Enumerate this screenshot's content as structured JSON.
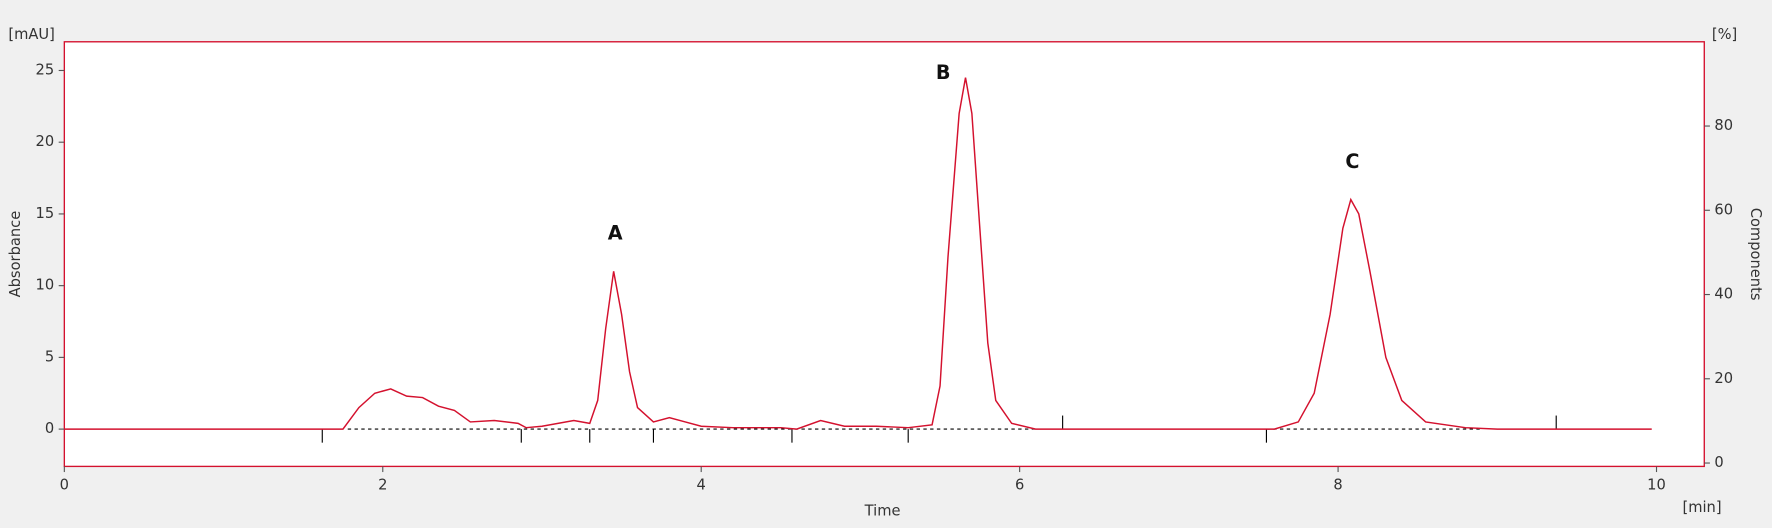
{
  "chart_data": {
    "type": "line",
    "x_label": "Time",
    "x_unit": "[min]",
    "y_label": "Absorbance",
    "y_unit": "[mAU]",
    "y2_label": "Components",
    "y2_unit": "[%]",
    "x": [
      0,
      1.75,
      1.85,
      1.95,
      2.05,
      2.15,
      2.25,
      2.35,
      2.45,
      2.55,
      2.7,
      2.85,
      2.9,
      3.0,
      3.2,
      3.3,
      3.35,
      3.4,
      3.45,
      3.5,
      3.55,
      3.6,
      3.7,
      3.8,
      3.9,
      4.0,
      4.2,
      4.5,
      4.6,
      4.75,
      4.9,
      5.1,
      5.3,
      5.45,
      5.5,
      5.55,
      5.62,
      5.66,
      5.7,
      5.75,
      5.8,
      5.85,
      5.95,
      6.1,
      7.6,
      7.75,
      7.85,
      7.95,
      8.03,
      8.08,
      8.13,
      8.2,
      8.3,
      8.4,
      8.55,
      8.8,
      9.0,
      9.97
    ],
    "series": [
      {
        "color": "#d4112e",
        "values": [
          0,
          0,
          1.5,
          2.5,
          2.8,
          2.3,
          2.2,
          1.6,
          1.3,
          0.5,
          0.6,
          0.4,
          0.1,
          0.2,
          0.6,
          0.4,
          2,
          7,
          11,
          8,
          4,
          1.5,
          0.5,
          0.8,
          0.5,
          0.2,
          0.1,
          0.1,
          0,
          0.6,
          0.2,
          0.2,
          0.1,
          0.3,
          3,
          12,
          22,
          24.5,
          22,
          14,
          6,
          2,
          0.4,
          0,
          0,
          0.5,
          2.5,
          8,
          14,
          16,
          15,
          11,
          5,
          2,
          0.5,
          0.1,
          0,
          0
        ]
      }
    ],
    "baseline_segments": [
      [
        1.78,
        6.1
      ],
      [
        7.55,
        8.9
      ]
    ],
    "marks_down": [
      1.62,
      2.87,
      3.3,
      3.7,
      4.57,
      5.3,
      7.55
    ],
    "marks_up": [
      6.27,
      9.37
    ],
    "annotations": [
      {
        "text": "A",
        "x": 3.46,
        "y": 13.6
      },
      {
        "text": "B",
        "x": 5.52,
        "y": 24.8
      },
      {
        "text": "C",
        "x": 8.09,
        "y": 18.6
      }
    ],
    "xlim": [
      0,
      10.3
    ],
    "xticks": [
      0,
      2,
      4,
      6,
      8,
      10
    ],
    "ylim": [
      -2.6,
      27
    ],
    "yticks": [
      0,
      5,
      10,
      15,
      20,
      25
    ],
    "y2lim": [
      -0.8,
      100
    ],
    "y2ticks": [
      0,
      20,
      40,
      60,
      80
    ]
  }
}
